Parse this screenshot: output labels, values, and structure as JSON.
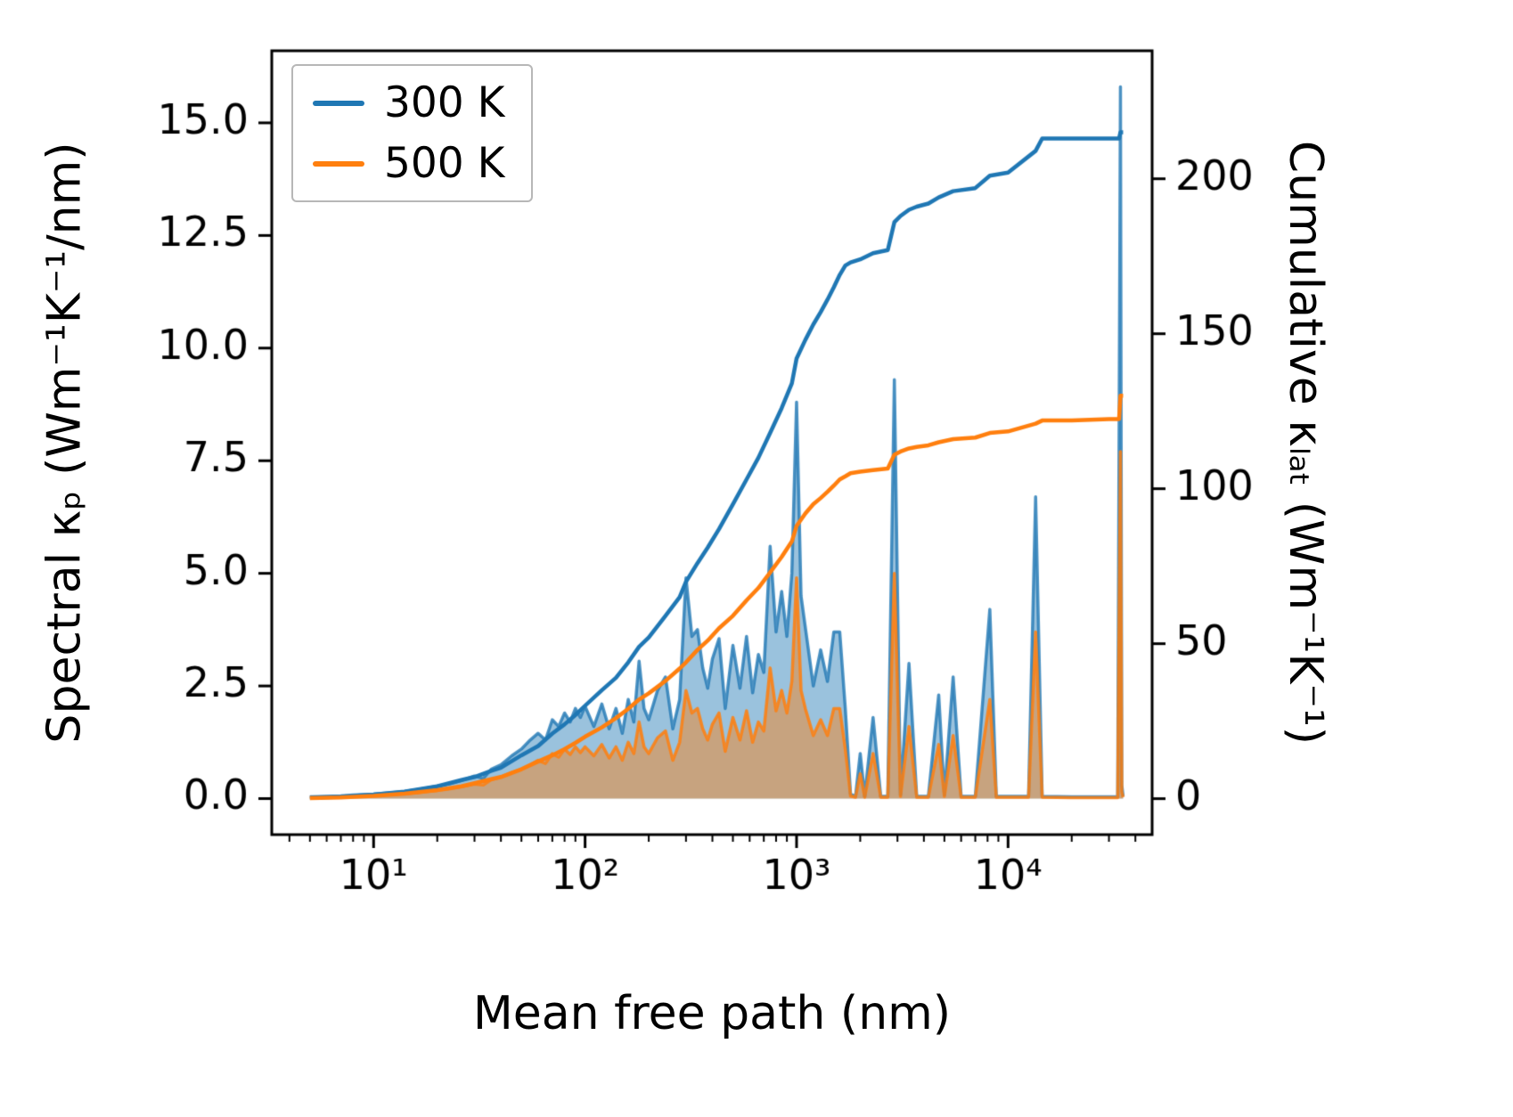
{
  "figure": {
    "xlabel": "Mean free path (nm)",
    "ylabel_left": "Spectral κₚ (Wm⁻¹K⁻¹/nm)",
    "ylabel_right": "Cumulative κₗₐₜ (Wm⁻¹K⁻¹)",
    "background": "#ffffff",
    "axis_color": "#000000"
  },
  "legend": {
    "items": [
      {
        "label": "300 K",
        "color": "#1f77b4"
      },
      {
        "label": "500 K",
        "color": "#ff7f0e"
      }
    ]
  },
  "chart_data": {
    "type": "line",
    "x_scale": "log",
    "xlim": [
      3.3,
      48000
    ],
    "ylim_left": [
      -0.8,
      16.6
    ],
    "ylim_right": [
      -11.6,
      241.3
    ],
    "grid": false,
    "legend_position": "upper left",
    "x_ticks": [
      {
        "v": 10,
        "label": "10¹"
      },
      {
        "v": 100,
        "label": "10²"
      },
      {
        "v": 1000,
        "label": "10³"
      },
      {
        "v": 10000,
        "label": "10⁴"
      }
    ],
    "y_ticks_left": [
      {
        "v": 0,
        "label": "0.0"
      },
      {
        "v": 2.5,
        "label": "2.5"
      },
      {
        "v": 5,
        "label": "5.0"
      },
      {
        "v": 7.5,
        "label": "7.5"
      },
      {
        "v": 10,
        "label": "10.0"
      },
      {
        "v": 12.5,
        "label": "12.5"
      },
      {
        "v": 15,
        "label": "15.0"
      }
    ],
    "y_ticks_right": [
      {
        "v": 0,
        "label": "0"
      },
      {
        "v": 50,
        "label": "50"
      },
      {
        "v": 100,
        "label": "100"
      },
      {
        "v": 150,
        "label": "150"
      },
      {
        "v": 200,
        "label": "200"
      }
    ],
    "series": [
      {
        "name": "spectral-300K",
        "axis": "left",
        "style": "area",
        "color": "#1f77b4",
        "fill_alpha": 0.45,
        "line_alpha": 0.8,
        "line_width": 3.5,
        "x": [
          5,
          6,
          7,
          8,
          9,
          10,
          12,
          14,
          16,
          18,
          20,
          23,
          26,
          30,
          33,
          36,
          40,
          45,
          50,
          55,
          60,
          65,
          70,
          75,
          80,
          85,
          90,
          95,
          100,
          110,
          120,
          130,
          140,
          150,
          160,
          170,
          180,
          190,
          200,
          220,
          240,
          260,
          280,
          300,
          320,
          340,
          360,
          380,
          400,
          430,
          460,
          500,
          540,
          580,
          620,
          660,
          700,
          750,
          800,
          850,
          900,
          950,
          1000,
          1050,
          1100,
          1200,
          1300,
          1400,
          1500,
          1600,
          1700,
          1800,
          1900,
          2000,
          2100,
          2300,
          2500,
          2700,
          2900,
          3100,
          3400,
          3700,
          4200,
          4700,
          5000,
          5500,
          6000,
          7000,
          8200,
          8800,
          10000,
          12500,
          13500,
          14500,
          20000,
          30000,
          33000,
          34000,
          34500,
          35000
        ],
        "y": [
          0.04,
          0.05,
          0.06,
          0.08,
          0.09,
          0.1,
          0.13,
          0.16,
          0.2,
          0.24,
          0.28,
          0.33,
          0.4,
          0.5,
          0.45,
          0.65,
          0.75,
          0.95,
          1.1,
          1.3,
          1.45,
          1.3,
          1.75,
          1.6,
          1.9,
          1.7,
          2.0,
          1.8,
          2.05,
          1.6,
          2.1,
          1.55,
          2.0,
          1.45,
          2.2,
          1.7,
          3.05,
          2.0,
          1.75,
          2.4,
          2.7,
          1.55,
          2.2,
          4.9,
          3.6,
          3.75,
          2.9,
          2.45,
          3.1,
          3.55,
          2.0,
          3.4,
          2.45,
          3.6,
          2.35,
          3.2,
          2.8,
          5.6,
          3.7,
          4.6,
          3.6,
          5.0,
          8.8,
          4.5,
          3.8,
          2.5,
          3.3,
          2.6,
          3.7,
          3.7,
          2.0,
          0.1,
          0.05,
          1.0,
          0.05,
          1.8,
          0.05,
          0.05,
          9.3,
          0.08,
          3.0,
          0.05,
          0.05,
          2.3,
          0.08,
          2.7,
          0.05,
          0.05,
          4.2,
          0.05,
          0.05,
          0.05,
          6.7,
          0.05,
          0.04,
          0.04,
          0.04,
          15.8,
          0.3,
          0.05
        ]
      },
      {
        "name": "spectral-500K",
        "axis": "left",
        "style": "area",
        "color": "#ff7f0e",
        "fill_alpha": 0.45,
        "line_alpha": 0.85,
        "line_width": 3.5,
        "x": [
          5,
          6,
          7,
          8,
          9,
          10,
          12,
          14,
          16,
          18,
          20,
          23,
          26,
          30,
          33,
          36,
          40,
          45,
          50,
          55,
          60,
          65,
          70,
          75,
          80,
          85,
          90,
          95,
          100,
          110,
          120,
          130,
          140,
          150,
          160,
          170,
          180,
          190,
          200,
          220,
          240,
          260,
          280,
          300,
          320,
          340,
          360,
          380,
          400,
          430,
          460,
          500,
          540,
          580,
          620,
          660,
          700,
          750,
          800,
          850,
          900,
          950,
          1000,
          1050,
          1100,
          1200,
          1300,
          1400,
          1500,
          1600,
          1700,
          1800,
          1900,
          2000,
          2100,
          2300,
          2500,
          2700,
          2900,
          3100,
          3400,
          3700,
          4200,
          4700,
          5000,
          5500,
          6000,
          7000,
          8200,
          8800,
          10000,
          12500,
          13500,
          14500,
          20000,
          30000,
          33000,
          34000,
          34500,
          35000
        ],
        "y": [
          0.03,
          0.03,
          0.04,
          0.05,
          0.06,
          0.07,
          0.09,
          0.11,
          0.13,
          0.16,
          0.18,
          0.22,
          0.26,
          0.32,
          0.3,
          0.42,
          0.48,
          0.58,
          0.65,
          0.75,
          0.85,
          0.78,
          1.0,
          0.92,
          1.1,
          0.98,
          1.15,
          1.02,
          1.15,
          0.95,
          1.2,
          0.9,
          1.15,
          0.85,
          1.25,
          1.0,
          1.7,
          1.15,
          1.0,
          1.35,
          1.5,
          0.85,
          1.25,
          2.4,
          1.9,
          2.0,
          1.55,
          1.3,
          1.65,
          1.9,
          1.05,
          1.8,
          1.3,
          1.95,
          1.25,
          1.7,
          1.5,
          2.9,
          1.95,
          2.4,
          1.9,
          2.6,
          4.9,
          2.4,
          2.0,
          1.4,
          1.75,
          1.4,
          2.0,
          2.0,
          1.1,
          0.06,
          0.03,
          0.55,
          0.03,
          1.0,
          0.03,
          0.03,
          5.0,
          0.05,
          1.6,
          0.03,
          0.03,
          1.2,
          0.05,
          1.4,
          0.03,
          0.03,
          2.2,
          0.03,
          0.03,
          0.03,
          3.7,
          0.03,
          0.02,
          0.02,
          0.02,
          7.7,
          0.15,
          0.03
        ]
      },
      {
        "name": "cumulative-300K",
        "axis": "right",
        "style": "line",
        "color": "#1f77b4",
        "line_alpha": 1.0,
        "line_width": 4.5,
        "x": [
          5,
          7,
          10,
          14,
          20,
          26,
          30,
          36,
          40,
          50,
          60,
          70,
          80,
          90,
          100,
          120,
          140,
          160,
          180,
          200,
          240,
          280,
          300,
          340,
          380,
          430,
          500,
          580,
          660,
          750,
          850,
          950,
          1000,
          1100,
          1200,
          1300,
          1400,
          1500,
          1600,
          1700,
          1800,
          2000,
          2300,
          2700,
          2900,
          3100,
          3400,
          3700,
          4200,
          4700,
          5500,
          7000,
          8200,
          10000,
          13500,
          14500,
          20000,
          30000,
          33500,
          34000,
          35000
        ],
        "y": [
          0.3,
          0.6,
          1.3,
          2.3,
          4,
          6,
          7,
          9,
          10,
          14,
          17,
          21,
          24,
          27,
          30,
          35,
          39,
          44,
          49,
          52,
          59,
          65,
          70,
          76,
          81,
          87,
          95,
          103,
          110,
          118,
          126,
          134,
          142,
          148,
          153,
          157,
          161,
          165,
          169,
          172,
          173,
          174,
          176,
          177,
          186,
          188,
          190,
          191,
          192,
          194,
          196,
          197,
          201,
          202,
          209,
          213,
          213,
          213,
          213,
          215,
          215
        ]
      },
      {
        "name": "cumulative-500K",
        "axis": "right",
        "style": "line",
        "color": "#ff7f0e",
        "line_alpha": 1.0,
        "line_width": 4.5,
        "x": [
          5,
          7,
          10,
          14,
          20,
          26,
          30,
          36,
          40,
          50,
          60,
          70,
          80,
          90,
          100,
          120,
          140,
          160,
          180,
          200,
          240,
          280,
          300,
          340,
          380,
          430,
          500,
          580,
          660,
          750,
          850,
          950,
          1000,
          1100,
          1200,
          1300,
          1400,
          1500,
          1600,
          1700,
          1800,
          2000,
          2300,
          2700,
          2900,
          3100,
          3400,
          3700,
          4200,
          4700,
          5500,
          7000,
          8200,
          10000,
          13500,
          14500,
          20000,
          30000,
          33500,
          34000,
          35000
        ],
        "y": [
          0.2,
          0.4,
          0.9,
          1.6,
          2.8,
          4,
          5,
          6.3,
          7,
          9.5,
          12,
          14,
          16,
          18,
          20,
          23,
          26,
          29,
          32,
          34,
          38,
          42,
          44,
          48,
          51,
          55,
          59,
          64,
          68,
          73,
          78,
          83,
          88,
          92,
          95,
          97,
          99,
          101,
          103,
          104,
          105,
          105.5,
          106,
          106.5,
          111,
          112,
          113,
          113.5,
          114,
          115,
          116,
          116.5,
          118,
          118.5,
          121,
          122,
          122,
          122.5,
          122.5,
          130,
          130
        ]
      }
    ]
  }
}
